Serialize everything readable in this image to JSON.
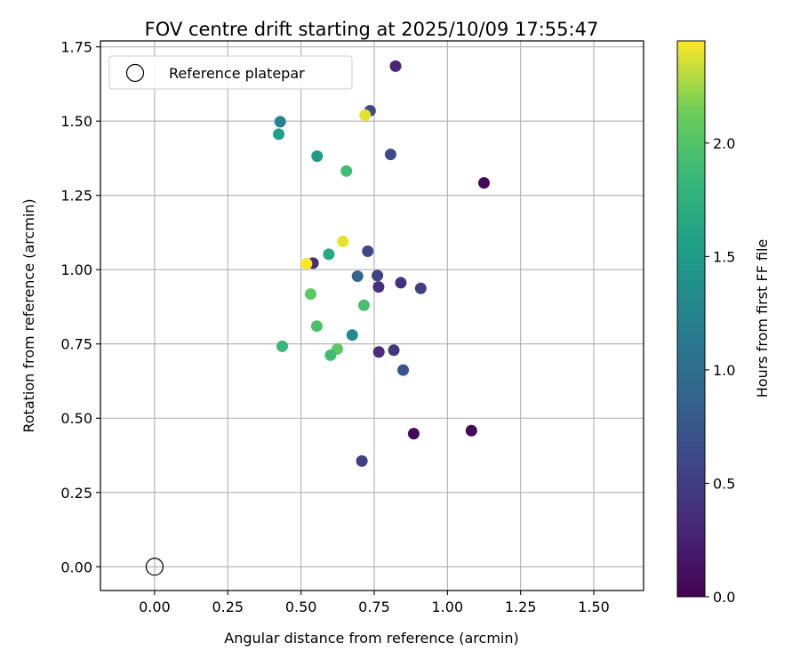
{
  "chart_data": {
    "type": "scatter",
    "title": "FOV centre drift starting at 2025/10/09 17:55:47",
    "xlabel": "Angular distance from reference (arcmin)",
    "ylabel": "Rotation from reference (arcmin)",
    "xlim": [
      -0.185,
      1.67
    ],
    "ylim": [
      -0.08,
      1.77
    ],
    "xticks": [
      0.0,
      0.25,
      0.5,
      0.75,
      1.0,
      1.25,
      1.5
    ],
    "xtick_labels": [
      "0.00",
      "0.25",
      "0.50",
      "0.75",
      "1.00",
      "1.25",
      "1.50"
    ],
    "yticks": [
      0.0,
      0.25,
      0.5,
      0.75,
      1.0,
      1.25,
      1.5,
      1.75
    ],
    "ytick_labels": [
      "0.00",
      "0.25",
      "0.50",
      "0.75",
      "1.00",
      "1.25",
      "1.50",
      "1.75"
    ],
    "grid": true,
    "legend": {
      "placement": "top-left",
      "entries": [
        "Reference platepar"
      ]
    },
    "reference_point": {
      "name": "Reference platepar",
      "x": 0.0,
      "y": 0.0
    },
    "colorbar": {
      "label": "Hours from first FF file",
      "colormap": "viridis",
      "range": [
        0.0,
        2.45
      ],
      "ticks": [
        0.0,
        0.5,
        1.0,
        1.5,
        2.0
      ],
      "tick_labels": [
        "0.0",
        "0.5",
        "1.0",
        "1.5",
        "2.0"
      ]
    },
    "points": [
      {
        "x": 0.823,
        "y": 1.685,
        "c": 0.3
      },
      {
        "x": 0.736,
        "y": 1.535,
        "c": 0.62
      },
      {
        "x": 0.429,
        "y": 1.498,
        "c": 1.25
      },
      {
        "x": 0.719,
        "y": 1.52,
        "c": 2.4
      },
      {
        "x": 0.424,
        "y": 1.456,
        "c": 1.55
      },
      {
        "x": 0.806,
        "y": 1.388,
        "c": 0.62
      },
      {
        "x": 0.555,
        "y": 1.382,
        "c": 1.5
      },
      {
        "x": 0.655,
        "y": 1.332,
        "c": 1.9
      },
      {
        "x": 1.125,
        "y": 1.292,
        "c": 0.05
      },
      {
        "x": 0.643,
        "y": 1.095,
        "c": 2.4
      },
      {
        "x": 0.728,
        "y": 1.062,
        "c": 0.6
      },
      {
        "x": 0.595,
        "y": 1.052,
        "c": 1.65
      },
      {
        "x": 0.541,
        "y": 1.022,
        "c": 0.35
      },
      {
        "x": 0.519,
        "y": 1.02,
        "c": 2.45
      },
      {
        "x": 0.693,
        "y": 0.978,
        "c": 0.9
      },
      {
        "x": 0.761,
        "y": 0.98,
        "c": 0.55
      },
      {
        "x": 0.765,
        "y": 0.942,
        "c": 0.4
      },
      {
        "x": 0.841,
        "y": 0.956,
        "c": 0.4
      },
      {
        "x": 0.909,
        "y": 0.937,
        "c": 0.5
      },
      {
        "x": 0.533,
        "y": 0.918,
        "c": 2.05
      },
      {
        "x": 0.715,
        "y": 0.88,
        "c": 1.95
      },
      {
        "x": 0.554,
        "y": 0.81,
        "c": 1.95
      },
      {
        "x": 0.675,
        "y": 0.78,
        "c": 1.3
      },
      {
        "x": 0.436,
        "y": 0.742,
        "c": 1.85
      },
      {
        "x": 0.624,
        "y": 0.733,
        "c": 2.05
      },
      {
        "x": 0.601,
        "y": 0.712,
        "c": 1.9
      },
      {
        "x": 0.766,
        "y": 0.723,
        "c": 0.35
      },
      {
        "x": 0.817,
        "y": 0.729,
        "c": 0.45
      },
      {
        "x": 0.849,
        "y": 0.662,
        "c": 0.7
      },
      {
        "x": 0.885,
        "y": 0.448,
        "c": 0.05
      },
      {
        "x": 1.082,
        "y": 0.458,
        "c": 0.05
      },
      {
        "x": 0.708,
        "y": 0.356,
        "c": 0.5
      }
    ]
  }
}
